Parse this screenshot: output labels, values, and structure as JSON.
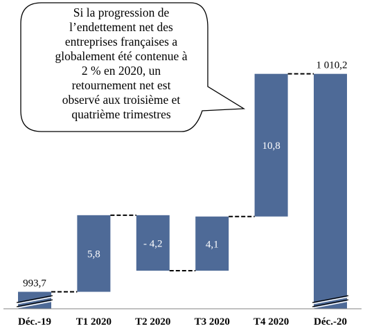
{
  "callout": {
    "lines": [
      "Si la progression de",
      "l’endettement net des",
      "entreprises françaises a",
      "globalement été contenue à",
      "2 % en 2020,  un",
      "retournement net est",
      "observé aux troisième et",
      "quatrième trimestres"
    ]
  },
  "colors": {
    "bar": "#4e6a97",
    "text": "#000000"
  },
  "chart_data": {
    "type": "bar",
    "subtype": "waterfall",
    "categories": [
      "Déc.-19",
      "T1 2020",
      "T2 2020",
      "T3 2020",
      "T4 2020",
      "Déc.-20"
    ],
    "values": [
      993.7,
      5.8,
      -4.2,
      4.1,
      10.8,
      1010.2
    ],
    "labels": [
      "993,7",
      "5,8",
      "- 4,2",
      "4,1",
      "10,8",
      "1 010,2"
    ],
    "kinds": [
      "total",
      "delta",
      "delta",
      "delta",
      "delta",
      "total"
    ],
    "axis_break": true,
    "title": "",
    "xlabel": "",
    "ylabel": ""
  }
}
